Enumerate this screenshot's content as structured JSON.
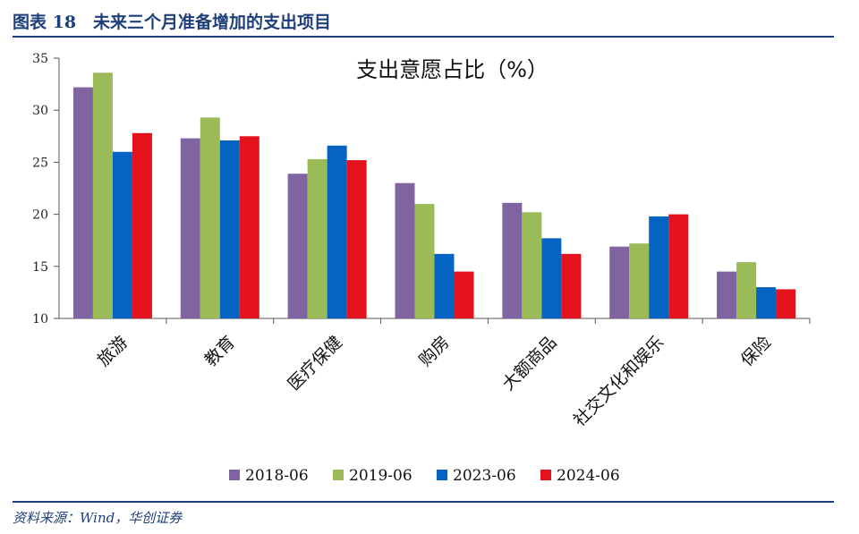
{
  "figure": {
    "title": "图表 18　未来三个月准备增加的支出项目",
    "source": "资料来源：Wind，华创证券"
  },
  "chart_data": {
    "type": "bar",
    "title": "支出意愿占比（%）",
    "xlabel": "",
    "ylabel": "",
    "ylim": [
      10,
      35
    ],
    "yticks": [
      10,
      15,
      20,
      25,
      30,
      35
    ],
    "categories": [
      "旅游",
      "教育",
      "医疗保健",
      "购房",
      "大额商品",
      "社交文化和娱乐",
      "保险"
    ],
    "series": [
      {
        "name": "2018-06",
        "color": "#8064a2",
        "values": [
          32.2,
          27.3,
          23.9,
          23.0,
          21.1,
          16.9,
          14.5
        ]
      },
      {
        "name": "2019-06",
        "color": "#9bbb59",
        "values": [
          33.6,
          29.3,
          25.3,
          21.0,
          20.2,
          17.2,
          15.4
        ]
      },
      {
        "name": "2023-06",
        "color": "#0563c1",
        "values": [
          26.0,
          27.1,
          26.6,
          16.2,
          17.7,
          19.8,
          13.0
        ]
      },
      {
        "name": "2024-06",
        "color": "#e4121c",
        "values": [
          27.8,
          27.5,
          25.2,
          14.5,
          16.2,
          20.0,
          12.8
        ]
      }
    ],
    "grid": false,
    "legend_position": "bottom"
  }
}
